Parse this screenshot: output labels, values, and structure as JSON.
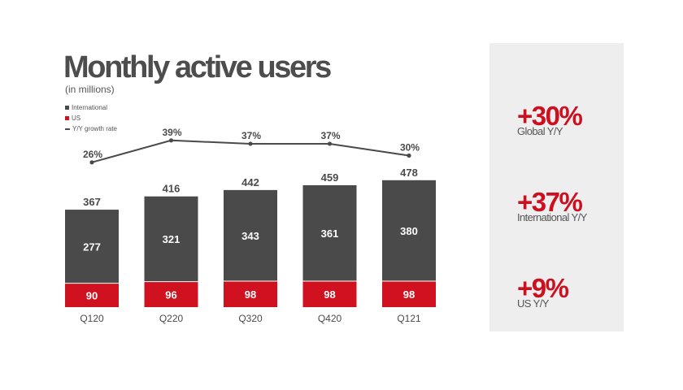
{
  "title": "Monthly active users",
  "subtitle": "(in millions)",
  "legend": [
    {
      "label": "International",
      "color": "#4a4a4a"
    },
    {
      "label": "US",
      "color": "#d0111f"
    },
    {
      "label": "Y/Y growth rate",
      "color": "#4a4a4a"
    }
  ],
  "colors": {
    "international": "#4a4a4a",
    "us": "#d0111f",
    "growth_line": "#4a4a4a",
    "accent": "#cc1020",
    "panel": "#eeeeee"
  },
  "chart_data": {
    "type": "bar",
    "stacked": true,
    "categories": [
      "Q120",
      "Q220",
      "Q320",
      "Q420",
      "Q121"
    ],
    "series": [
      {
        "name": "US",
        "values": [
          90,
          96,
          98,
          98,
          98
        ]
      },
      {
        "name": "International",
        "values": [
          277,
          321,
          343,
          361,
          380
        ]
      }
    ],
    "totals": [
      367,
      416,
      442,
      459,
      478
    ],
    "growth_series": {
      "name": "Y/Y growth rate",
      "type": "line",
      "values": [
        26,
        39,
        37,
        37,
        30
      ],
      "labels": [
        "26%",
        "39%",
        "37%",
        "37%",
        "30%"
      ]
    },
    "grid": false,
    "legend_position": "top-left"
  },
  "kpis": [
    {
      "value": "+30%",
      "label": "Global Y/Y"
    },
    {
      "value": "+37%",
      "label": "International Y/Y"
    },
    {
      "value": "+9%",
      "label": "US Y/Y"
    }
  ]
}
